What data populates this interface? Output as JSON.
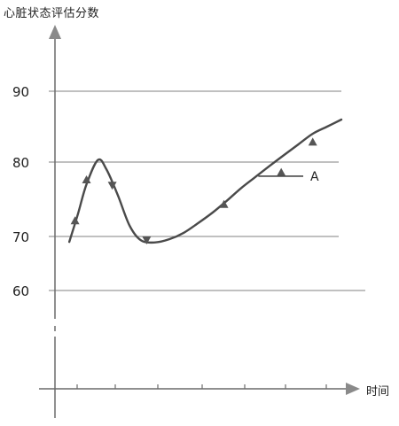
{
  "chart_data": {
    "type": "line",
    "ylabel": "心脏状态评估分数",
    "xlabel": "时间",
    "y_ticks": [
      60,
      70,
      80,
      90
    ],
    "ylim": [
      50,
      95
    ],
    "xlim": [
      0,
      10
    ],
    "grid": true,
    "annotation": "A",
    "series": [
      {
        "x": [
          0.5,
          0.8,
          1.1,
          1.5,
          1.8,
          2.2,
          2.6,
          3.0,
          3.5,
          4.0,
          4.5,
          5.0,
          5.5,
          6.0,
          6.5,
          7.0,
          7.5,
          8.0,
          8.5,
          9.0,
          9.5,
          10.0
        ],
        "y": [
          69,
          73,
          77,
          80.3,
          79,
          75.5,
          71.5,
          69.3,
          68.9,
          69.5,
          70.5,
          71.8,
          73.2,
          74.8,
          76.5,
          78,
          79.5,
          81,
          82.5,
          84,
          85,
          86
        ]
      }
    ],
    "markers": [
      {
        "x": 0.7,
        "y": 72,
        "dir": "up"
      },
      {
        "x": 1.1,
        "y": 77.5,
        "dir": "up"
      },
      {
        "x": 2.0,
        "y": 77,
        "dir": "down"
      },
      {
        "x": 3.2,
        "y": 69.5,
        "dir": "down"
      },
      {
        "x": 5.9,
        "y": 74.2,
        "dir": "up"
      },
      {
        "x": 7.9,
        "y": 78.5,
        "dir": "up"
      },
      {
        "x": 9.0,
        "y": 82.7,
        "dir": "up"
      }
    ]
  }
}
